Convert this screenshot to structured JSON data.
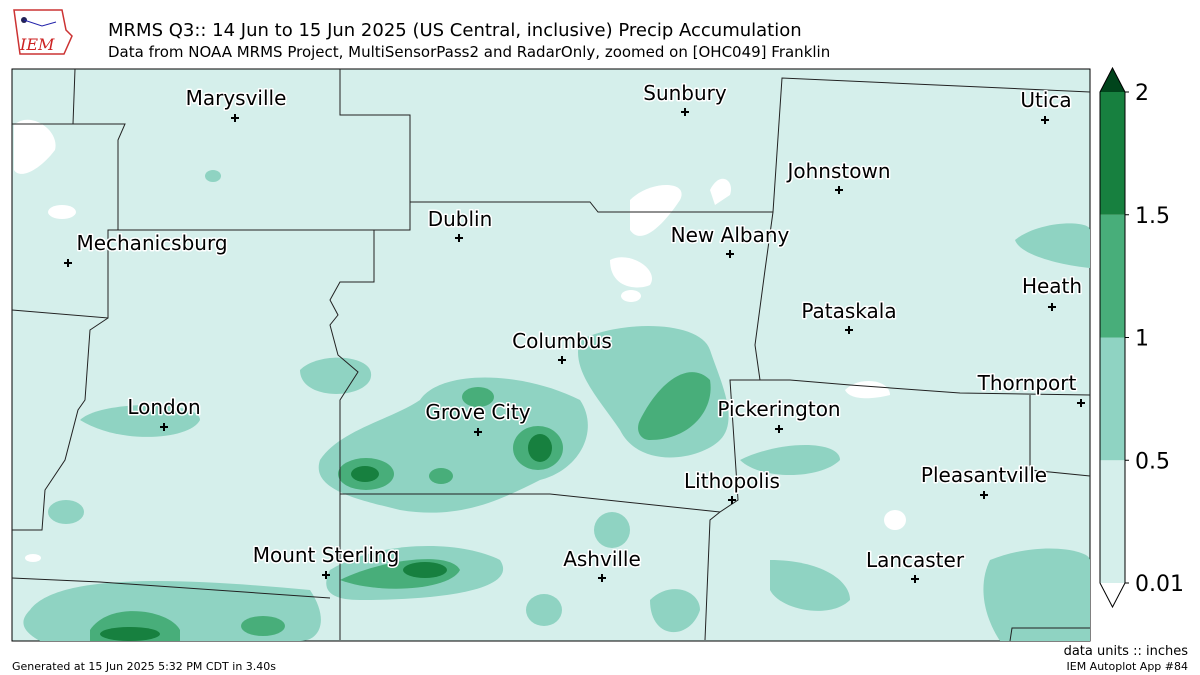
{
  "header": {
    "logo": "IEM",
    "title": "MRMS Q3:: 14 Jun to 15 Jun 2025 (US Central, inclusive) Precip Accumulation",
    "subtitle": "Data from NOAA MRMS Project, MultiSensorPass2 and RadarOnly, zoomed on [OHC049] Franklin"
  },
  "cities": [
    "Marysville",
    "Sunbury",
    "Utica",
    "Johnstown",
    "Dublin",
    "New Albany",
    "Mechanicsburg",
    "Heath",
    "Pataskala",
    "Columbus",
    "Thornport",
    "London",
    "Grove City",
    "Pickerington",
    "Lithopolis",
    "Pleasantville",
    "Mount Sterling",
    "Ashville",
    "Lancaster"
  ],
  "colorbar": {
    "ticks": [
      0.01,
      0.5,
      1,
      1.5,
      2
    ],
    "colors": [
      "#d5efeb",
      "#8fd3c2",
      "#48ae7a",
      "#17803f"
    ],
    "under_color": "#ffffff",
    "over_color": "#00441b",
    "units": "data units :: inches"
  },
  "footer": {
    "generated": "Generated at 15 Jun 2025 5:32 PM CDT in 3.40s",
    "app": "IEM Autoplot App #84"
  }
}
